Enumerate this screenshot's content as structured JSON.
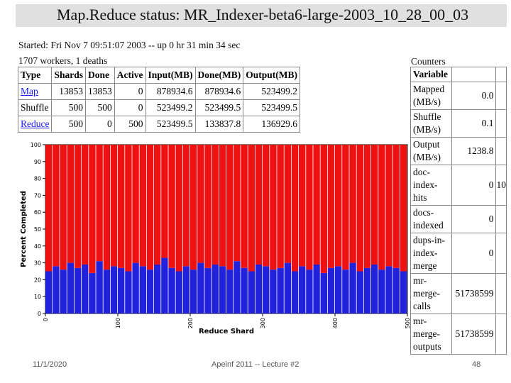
{
  "title": "Map.Reduce status: MR_Indexer-beta6-large-2003_10_28_00_03",
  "started": "Started: Fri Nov 7 09:51:07 2003 -- up 0 hr 31 min 34 sec",
  "workers": "1707 workers, 1 deaths",
  "status_table": {
    "headers": [
      "Type",
      "Shards",
      "Done",
      "Active",
      "Input(MB)",
      "Done(MB)",
      "Output(MB)"
    ],
    "rows": [
      {
        "type": "Map",
        "link": true,
        "shards": "13853",
        "done": "13853",
        "active": "0",
        "input": "878934.6",
        "done_mb": "878934.6",
        "output": "523499.2"
      },
      {
        "type": "Shuffle",
        "link": false,
        "shards": "500",
        "done": "500",
        "active": "0",
        "input": "523499.2",
        "done_mb": "523499.5",
        "output": "523499.5"
      },
      {
        "type": "Reduce",
        "link": true,
        "shards": "500",
        "done": "0",
        "active": "500",
        "input": "523499.5",
        "done_mb": "133837.8",
        "output": "136929.6"
      }
    ]
  },
  "counters": {
    "title": "Counters",
    "header": "Variable",
    "rows": [
      {
        "label": "Mapped (MB/s)",
        "value": "0.0",
        "extra": ""
      },
      {
        "label": "Shuffle (MB/s)",
        "value": "0.1",
        "extra": ""
      },
      {
        "label": "Output (MB/s)",
        "value": "1238.8",
        "extra": ""
      },
      {
        "label": "doc-index-hits",
        "value": "0",
        "extra": "10"
      },
      {
        "label": "docs-indexed",
        "value": "0",
        "extra": ""
      },
      {
        "label": "dups-in-index-merge",
        "value": "0",
        "extra": ""
      },
      {
        "label": "mr-merge-calls",
        "value": "51738599",
        "extra": ""
      },
      {
        "label": "mr-merge-outputs",
        "value": "51738599",
        "extra": ""
      }
    ]
  },
  "chart_data": {
    "type": "bar",
    "stacked": true,
    "xlabel": "Reduce Shard",
    "ylabel": "Percent Completed",
    "xlim": [
      0,
      500
    ],
    "ylim": [
      0,
      100
    ],
    "xticks": [
      "0",
      "100",
      "200",
      "300",
      "400",
      "500"
    ],
    "yticks": [
      "0",
      "10",
      "20",
      "30",
      "40",
      "50",
      "60",
      "70",
      "80",
      "90",
      "100"
    ],
    "bar_count": 50,
    "series": [
      {
        "name": "",
        "color": "#2222dd",
        "values": [
          25,
          28,
          26,
          30,
          27,
          29,
          24,
          31,
          26,
          28,
          27,
          25,
          30,
          28,
          26,
          29,
          33,
          27,
          25,
          28,
          26,
          30,
          27,
          29,
          28,
          26,
          31,
          27,
          25,
          29,
          28,
          26,
          27,
          30,
          25,
          28,
          26,
          29,
          24,
          27,
          28,
          26,
          30,
          25,
          27,
          29,
          26,
          28,
          27,
          25
        ]
      },
      {
        "name": "",
        "color": "#ee1111",
        "values": [
          75,
          72,
          74,
          70,
          73,
          71,
          76,
          69,
          74,
          72,
          73,
          75,
          70,
          72,
          74,
          71,
          67,
          73,
          75,
          72,
          74,
          70,
          73,
          71,
          72,
          74,
          69,
          73,
          75,
          71,
          72,
          74,
          73,
          70,
          75,
          72,
          74,
          71,
          76,
          73,
          72,
          74,
          70,
          75,
          73,
          71,
          74,
          72,
          73,
          75
        ]
      }
    ]
  },
  "footer": {
    "date": "11/1/2020",
    "course": "Apeinf 2011 -- Lecture #2",
    "page": "48"
  }
}
